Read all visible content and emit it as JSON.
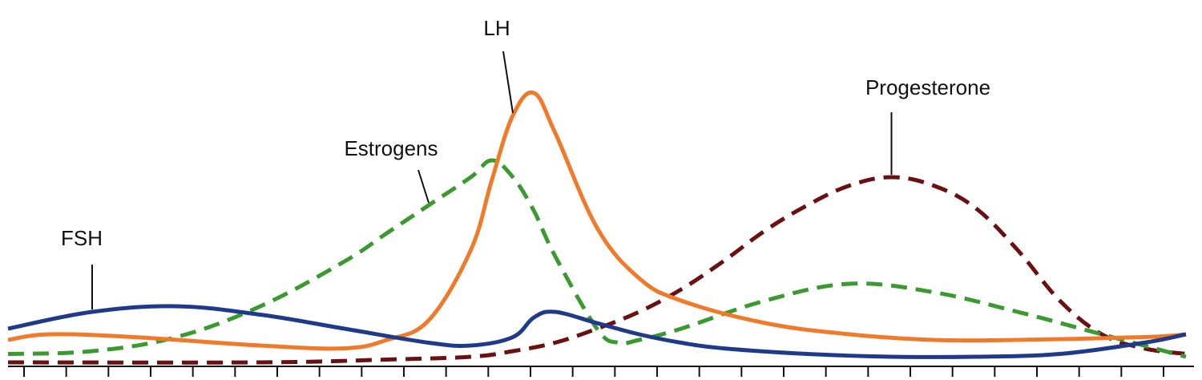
{
  "chart_data": {
    "type": "line",
    "title": "",
    "xlabel": "",
    "ylabel": "",
    "axes": {
      "y_axis": "none",
      "x_ticks": 28,
      "grid": false
    },
    "series": [
      {
        "name": "FSH",
        "color": "#1f3a8a",
        "style": "solid",
        "x": [
          0,
          2,
          4,
          6,
          8,
          10,
          11,
          12,
          12.5,
          13,
          14,
          15,
          16,
          17,
          19,
          21,
          23,
          25,
          27,
          28
        ],
        "values": [
          12,
          18,
          20,
          17,
          12,
          7,
          6,
          9,
          16,
          18,
          14,
          10,
          7,
          5,
          3,
          2,
          2,
          3,
          7,
          10
        ]
      },
      {
        "name": "LH",
        "color": "#f07a2a",
        "style": "solid",
        "x": [
          0,
          1,
          3,
          6,
          8,
          9,
          10,
          11,
          11.5,
          12,
          12.5,
          13,
          14,
          15,
          16,
          18,
          20,
          22,
          24,
          27,
          28
        ],
        "values": [
          8,
          10,
          9,
          6,
          5,
          8,
          15,
          40,
          65,
          88,
          96,
          82,
          48,
          30,
          22,
          14,
          10,
          8,
          8,
          9,
          10
        ]
      },
      {
        "name": "Estrogens",
        "color": "#3a9a2f",
        "style": "dashed",
        "x": [
          0,
          2,
          4,
          6,
          8,
          9,
          10,
          11,
          11.5,
          12,
          12.5,
          13,
          14,
          14.5,
          15,
          16,
          18,
          20,
          22,
          24,
          26,
          28
        ],
        "values": [
          3,
          4,
          9,
          20,
          36,
          46,
          56,
          66,
          72,
          66,
          54,
          38,
          12,
          7,
          8,
          12,
          22,
          28,
          25,
          18,
          10,
          2
        ]
      },
      {
        "name": "Progesterone",
        "color": "#6b1010",
        "style": "dashed",
        "x": [
          0,
          6,
          9,
          11,
          12,
          13,
          14,
          15,
          16,
          17,
          18,
          19,
          20,
          21,
          22,
          23,
          24,
          25,
          26,
          27,
          28
        ],
        "values": [
          0,
          0,
          1,
          2,
          4,
          7,
          12,
          18,
          26,
          36,
          47,
          56,
          63,
          66,
          63,
          55,
          40,
          22,
          10,
          5,
          3
        ]
      }
    ],
    "annotations": [
      {
        "label": "FSH",
        "series": "FSH",
        "x": 2
      },
      {
        "label": "LH",
        "series": "LH",
        "x": 12
      },
      {
        "label": "Estrogens",
        "series": "Estrogens",
        "x": 10
      },
      {
        "label": "Progesterone",
        "series": "Progesterone",
        "x": 21
      }
    ]
  }
}
